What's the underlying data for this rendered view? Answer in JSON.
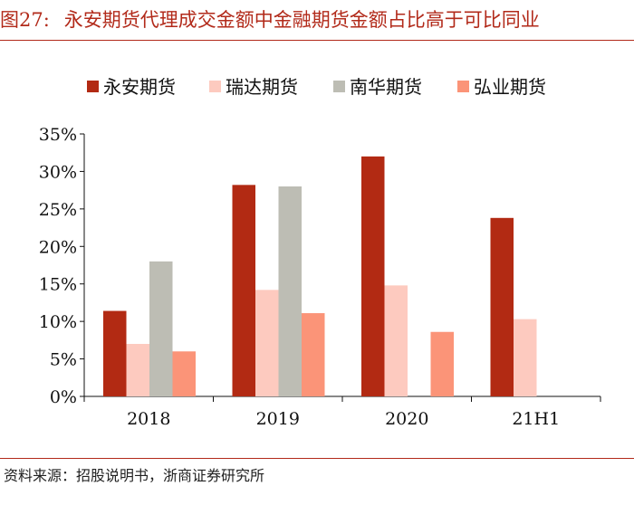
{
  "header": {
    "figure_no": "图27:",
    "title": "永安期货代理成交金额中金融期货金额占比高于可比同业"
  },
  "footer": {
    "source": "资料来源：招股说明书，浙商证券研究所"
  },
  "chart_data": {
    "type": "bar",
    "title": "永安期货代理成交金额中金融期货金额占比高于可比同业",
    "categories": [
      "2018",
      "2019",
      "2020",
      "21H1"
    ],
    "series": [
      {
        "name": "永安期货",
        "color": "#b22a13",
        "values": [
          11.4,
          28.2,
          32.0,
          23.8
        ]
      },
      {
        "name": "瑞达期货",
        "color": "#fdcabf",
        "values": [
          7.0,
          14.2,
          14.8,
          10.3
        ]
      },
      {
        "name": "南华期货",
        "color": "#bdbdb4",
        "values": [
          18.0,
          28.0,
          null,
          null
        ]
      },
      {
        "name": "弘业期货",
        "color": "#fb9478",
        "values": [
          6.0,
          11.1,
          8.6,
          null
        ]
      }
    ],
    "ylim": [
      0,
      35
    ],
    "yticks": [
      "0%",
      "5%",
      "10%",
      "15%",
      "20%",
      "25%",
      "30%",
      "35%"
    ],
    "xlabel": "",
    "ylabel": "",
    "legend": "top"
  }
}
